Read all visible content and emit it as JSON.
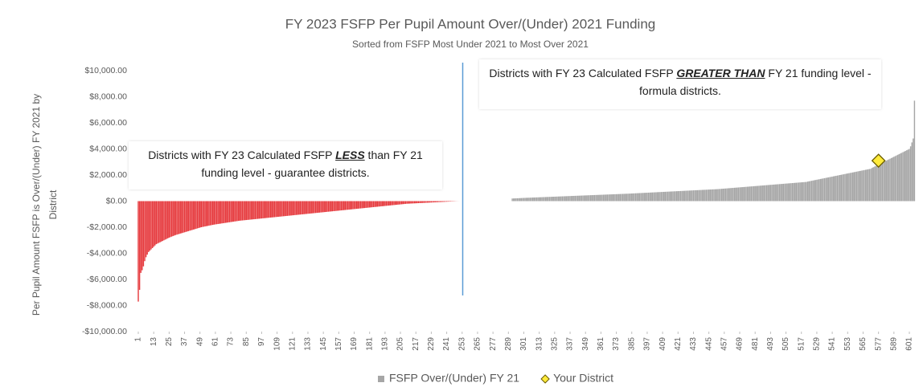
{
  "chart_data": {
    "type": "bar",
    "title": "FY 2023 FSFP Per Pupil Amount Over/(Under) 2021 Funding",
    "subtitle": "Sorted from FSFP Most Under 2021 to Most Over 2021",
    "y_label": [
      "Per Pupil Amount FSFP is Over/(Under) FY 2021 by",
      "District"
    ],
    "annotations": [
      [
        "Districts with FY 23 Calculated FSFP ",
        "LESS",
        " than FY 21 funding level - guarantee districts."
      ],
      [
        "Districts with FY 23 Calculated FSFP ",
        "GREATER THAN",
        " FY 21 funding level - formula districts."
      ]
    ],
    "negative_color": "#e63b3f",
    "xlim": [
      0.5,
      605.5
    ],
    "ylim": [
      -10000,
      10000
    ],
    "yticks": [
      {
        "value": -10000,
        "label": "-$10,000.00"
      },
      {
        "value": -8000,
        "label": "-$8,000.00"
      },
      {
        "value": -6000,
        "label": "-$6,000.00"
      },
      {
        "value": -4000,
        "label": "-$4,000.00"
      },
      {
        "value": -2000,
        "label": "-$2,000.00"
      },
      {
        "value": 0,
        "label": "$0.00"
      },
      {
        "value": 2000,
        "label": "$2,000.00"
      },
      {
        "value": 4000,
        "label": "$4,000.00"
      },
      {
        "value": 6000,
        "label": "$6,000.00"
      },
      {
        "value": 8000,
        "label": "$8,000.00"
      },
      {
        "value": 10000,
        "label": "$10,000.00"
      }
    ],
    "xticks": [
      1,
      13,
      25,
      37,
      49,
      61,
      73,
      85,
      97,
      109,
      121,
      133,
      145,
      157,
      169,
      181,
      193,
      205,
      217,
      229,
      241,
      253,
      265,
      277,
      289,
      301,
      313,
      325,
      337,
      349,
      361,
      373,
      385,
      397,
      409,
      421,
      433,
      445,
      457,
      469,
      481,
      493,
      505,
      517,
      529,
      541,
      553,
      565,
      577,
      589,
      601
    ],
    "x": [
      1,
      2,
      3,
      4,
      5,
      6,
      7,
      8,
      9,
      10,
      11,
      12,
      13,
      14,
      15,
      16,
      17,
      18,
      19,
      20,
      21,
      22,
      23,
      24,
      25,
      26,
      27,
      28,
      29,
      30,
      31,
      32,
      33,
      34,
      35,
      36,
      37,
      38,
      39,
      40,
      41,
      42,
      43,
      44,
      45,
      46,
      47,
      48,
      49,
      50,
      51,
      52,
      53,
      54,
      55,
      56,
      57,
      58,
      59,
      60,
      61,
      62,
      63,
      64,
      65,
      66,
      67,
      68,
      69,
      70,
      71,
      72,
      73,
      74,
      75,
      76,
      77,
      78,
      79,
      80,
      81,
      82,
      83,
      84,
      85,
      86,
      87,
      88,
      89,
      90,
      91,
      92,
      93,
      94,
      95,
      96,
      97,
      98,
      99,
      100,
      101,
      102,
      103,
      104,
      105,
      106,
      107,
      108,
      109,
      110,
      111,
      112,
      113,
      114,
      115,
      116,
      117,
      118,
      119,
      120,
      121,
      122,
      123,
      124,
      125,
      126,
      127,
      128,
      129,
      130,
      131,
      132,
      133,
      134,
      135,
      136,
      137,
      138,
      139,
      140,
      141,
      142,
      143,
      144,
      145,
      146,
      147,
      148,
      149,
      150,
      151,
      152,
      153,
      154,
      155,
      156,
      157,
      158,
      159,
      160,
      161,
      162,
      163,
      164,
      165,
      166,
      167,
      168,
      169,
      170,
      171,
      172,
      173,
      174,
      175,
      176,
      177,
      178,
      179,
      180,
      181,
      182,
      183,
      184,
      185,
      186,
      187,
      188,
      189,
      190,
      191,
      192,
      193,
      194,
      195,
      196,
      197,
      198,
      199,
      200,
      201,
      202,
      203,
      204,
      205,
      206,
      207,
      208,
      209,
      210,
      211,
      212,
      213,
      214,
      215,
      216,
      217,
      218,
      219,
      220,
      221,
      222,
      223,
      224,
      225,
      226,
      227,
      228,
      229,
      230,
      231,
      232,
      233,
      234,
      235,
      236,
      237,
      238,
      239,
      240,
      241,
      242,
      243,
      244,
      245,
      246,
      247,
      248,
      249,
      250,
      251,
      252,
      253,
      254,
      255,
      256,
      257,
      258,
      259,
      260,
      261,
      262,
      263,
      264,
      265,
      266,
      267,
      268,
      269,
      270,
      271,
      272,
      273,
      274,
      275,
      276,
      277,
      278,
      279,
      280,
      281,
      282,
      283,
      284,
      285,
      286,
      287,
      288,
      289,
      290,
      291,
      292,
      293,
      294,
      295,
      296,
      297,
      298,
      299,
      300,
      301,
      302,
      303,
      304,
      305,
      306,
      307,
      308,
      309,
      310,
      311,
      312,
      313,
      314,
      315,
      316,
      317,
      318,
      319,
      320,
      321,
      322,
      323,
      324,
      325,
      326,
      327,
      328,
      329,
      330,
      331,
      332,
      333,
      334,
      335,
      336,
      337,
      338,
      339,
      340,
      341,
      342,
      343,
      344,
      345,
      346,
      347,
      348,
      349,
      350,
      351,
      352,
      353,
      354,
      355,
      356,
      357,
      358,
      359,
      360,
      361,
      362,
      363,
      364,
      365,
      366,
      367,
      368,
      369,
      370,
      371,
      372,
      373,
      374,
      375,
      376,
      377,
      378,
      379,
      380,
      381,
      382,
      383,
      384,
      385,
      386,
      387,
      388,
      389,
      390,
      391,
      392,
      393,
      394,
      395,
      396,
      397,
      398,
      399,
      400,
      401,
      402,
      403,
      404,
      405,
      406,
      407,
      408,
      409,
      410,
      411,
      412,
      413,
      414,
      415,
      416,
      417,
      418,
      419,
      420,
      421,
      422,
      423,
      424,
      425,
      426,
      427,
      428,
      429,
      430,
      431,
      432,
      433,
      434,
      435,
      436,
      437,
      438,
      439,
      440,
      441,
      442,
      443,
      444,
      445,
      446,
      447,
      448,
      449,
      450,
      451,
      452,
      453,
      454,
      455,
      456,
      457,
      458,
      459,
      460,
      461,
      462,
      463,
      464,
      465,
      466,
      467,
      468,
      469,
      470,
      471,
      472,
      473,
      474,
      475,
      476,
      477,
      478,
      479,
      480,
      481,
      482,
      483,
      484,
      485,
      486,
      487,
      488,
      489,
      490,
      491,
      492,
      493,
      494,
      495,
      496,
      497,
      498,
      499,
      500,
      501,
      502,
      503,
      504,
      505,
      506,
      507,
      508,
      509,
      510,
      511,
      512,
      513,
      514,
      515,
      516,
      517,
      518,
      519,
      520,
      521,
      522,
      523,
      524,
      525,
      526,
      527,
      528,
      529,
      530,
      531,
      532,
      533,
      534,
      535,
      536,
      537,
      538,
      539,
      540,
      541,
      542,
      543,
      544,
      545,
      546,
      547,
      548,
      549,
      550,
      551,
      552,
      553,
      554,
      555,
      556,
      557,
      558,
      559,
      560,
      561,
      562,
      563,
      564,
      565,
      566,
      567,
      568,
      569,
      570,
      571,
      572,
      573,
      574,
      575,
      576,
      577,
      578,
      579,
      580,
      581,
      582,
      583,
      584,
      585,
      586,
      587,
      588,
      589,
      590,
      591,
      592,
      593,
      594,
      595,
      596,
      597,
      598,
      599,
      600,
      601,
      602,
      603,
      604,
      605
    ],
    "series": [
      {
        "name": "FSFP Over/(Under) FY 21",
        "color": "#a6a6a6",
        "values": [
          -7700,
          -6800,
          -5500,
          -5300,
          -5000,
          -4600,
          -4300,
          -4100,
          -3900,
          -3800,
          -3700,
          -3600,
          -3500,
          -3400,
          -3300,
          -3250,
          -3200,
          -3150,
          -3100,
          -3050,
          -3000,
          -2950,
          -2900,
          -2850,
          -2800,
          -2760,
          -2720,
          -2680,
          -2640,
          -2600,
          -2570,
          -2540,
          -2510,
          -2480,
          -2450,
          -2420,
          -2390,
          -2360,
          -2330,
          -2300,
          -2270,
          -2240,
          -2210,
          -2180,
          -2150,
          -2120,
          -2090,
          -2060,
          -2030,
          -2000,
          -1980,
          -1960,
          -1940,
          -1920,
          -1900,
          -1880,
          -1860,
          -1840,
          -1820,
          -1800,
          -1785,
          -1770,
          -1755,
          -1740,
          -1725,
          -1710,
          -1695,
          -1680,
          -1665,
          -1650,
          -1635,
          -1620,
          -1605,
          -1590,
          -1575,
          -1560,
          -1545,
          -1530,
          -1515,
          -1500,
          -1490,
          -1480,
          -1470,
          -1460,
          -1450,
          -1440,
          -1430,
          -1420,
          -1410,
          -1400,
          -1390,
          -1380,
          -1370,
          -1360,
          -1350,
          -1340,
          -1330,
          -1320,
          -1310,
          -1300,
          -1290,
          -1280,
          -1270,
          -1260,
          -1250,
          -1240,
          -1230,
          -1220,
          -1210,
          -1200,
          -1190,
          -1180,
          -1170,
          -1160,
          -1150,
          -1140,
          -1130,
          -1120,
          -1110,
          -1100,
          -1090,
          -1080,
          -1070,
          -1060,
          -1050,
          -1040,
          -1030,
          -1020,
          -1010,
          -1000,
          -990,
          -980,
          -970,
          -960,
          -950,
          -940,
          -930,
          -920,
          -910,
          -900,
          -890,
          -880,
          -870,
          -860,
          -850,
          -840,
          -830,
          -820,
          -810,
          -800,
          -790,
          -780,
          -770,
          -760,
          -750,
          -740,
          -730,
          -720,
          -710,
          -700,
          -690,
          -680,
          -670,
          -660,
          -650,
          -640,
          -630,
          -620,
          -610,
          -600,
          -590,
          -580,
          -570,
          -560,
          -550,
          -540,
          -530,
          -520,
          -510,
          -500,
          -490,
          -480,
          -470,
          -460,
          -450,
          -440,
          -430,
          -420,
          -410,
          -400,
          -390,
          -380,
          -370,
          -360,
          -350,
          -340,
          -330,
          -320,
          -310,
          -300,
          -290,
          -280,
          -270,
          -260,
          -250,
          -240,
          -230,
          -220,
          -210,
          -200,
          -195,
          -190,
          -185,
          -180,
          -175,
          -170,
          -165,
          -160,
          -155,
          -150,
          -145,
          -140,
          -135,
          -130,
          -125,
          -120,
          -115,
          -110,
          -105,
          -100,
          -95,
          -90,
          -85,
          -80,
          -75,
          -70,
          -65,
          -60,
          -55,
          -50,
          -45,
          -40,
          -35,
          -30,
          -25,
          -20,
          -15,
          -10,
          -5,
          -3,
          -1,
          0,
          0,
          0,
          0,
          0,
          0,
          0,
          0,
          0,
          0,
          0,
          0,
          0,
          0,
          0,
          0,
          0,
          0,
          0,
          0,
          0,
          0,
          0,
          0,
          0,
          0,
          0,
          0,
          0,
          0,
          0,
          0,
          0,
          0,
          0,
          0,
          0,
          0,
          0,
          0,
          200,
          205,
          210,
          215,
          220,
          225,
          230,
          235,
          240,
          245,
          250,
          254,
          258,
          262,
          266,
          270,
          274,
          278,
          282,
          286,
          290,
          294,
          298,
          302,
          306,
          310,
          314,
          318,
          322,
          326,
          330,
          334,
          338,
          342,
          346,
          350,
          354,
          358,
          362,
          366,
          370,
          374,
          378,
          382,
          386,
          390,
          394,
          398,
          402,
          406,
          410,
          414,
          418,
          422,
          426,
          430,
          434,
          438,
          442,
          446,
          450,
          454,
          458,
          462,
          466,
          470,
          474,
          478,
          482,
          486,
          490,
          494,
          498,
          502,
          506,
          510,
          514,
          518,
          522,
          526,
          530,
          534,
          538,
          542,
          546,
          550,
          554,
          558,
          562,
          566,
          570,
          575,
          580,
          585,
          590,
          595,
          600,
          605,
          610,
          615,
          620,
          625,
          630,
          635,
          640,
          645,
          650,
          655,
          660,
          665,
          670,
          675,
          680,
          685,
          690,
          695,
          700,
          705,
          710,
          715,
          720,
          725,
          730,
          735,
          740,
          745,
          750,
          755,
          760,
          765,
          770,
          775,
          780,
          785,
          790,
          795,
          800,
          805,
          810,
          815,
          820,
          825,
          830,
          835,
          840,
          845,
          850,
          855,
          860,
          865,
          870,
          875,
          880,
          885,
          890,
          895,
          900,
          905,
          910,
          915,
          920,
          928,
          936,
          944,
          952,
          960,
          968,
          976,
          984,
          992,
          1000,
          1008,
          1016,
          1024,
          1032,
          1040,
          1048,
          1056,
          1064,
          1072,
          1080,
          1088,
          1096,
          1104,
          1112,
          1120,
          1128,
          1136,
          1144,
          1152,
          1160,
          1168,
          1176,
          1184,
          1192,
          1200,
          1208,
          1216,
          1224,
          1232,
          1240,
          1248,
          1256,
          1264,
          1272,
          1280,
          1288,
          1296,
          1304,
          1312,
          1320,
          1328,
          1336,
          1344,
          1352,
          1360,
          1368,
          1376,
          1384,
          1392,
          1400,
          1408,
          1416,
          1424,
          1432,
          1440,
          1448,
          1456,
          1464,
          1472,
          1500,
          1520,
          1540,
          1560,
          1580,
          1600,
          1620,
          1640,
          1660,
          1680,
          1700,
          1720,
          1740,
          1760,
          1780,
          1800,
          1820,
          1840,
          1860,
          1880,
          1900,
          1920,
          1940,
          1960,
          1980,
          2000,
          2020,
          2040,
          2060,
          2080,
          2100,
          2120,
          2140,
          2160,
          2180,
          2200,
          2220,
          2240,
          2260,
          2280,
          2300,
          2320,
          2340,
          2360,
          2380,
          2400,
          2420,
          2440,
          2460,
          2480,
          2550,
          2600,
          2650,
          2700,
          2750,
          2800,
          2850,
          2900,
          2950,
          3000,
          3050,
          3100,
          3150,
          3200,
          3250,
          3300,
          3350,
          3400,
          3450,
          3500,
          3550,
          3600,
          3650,
          3700,
          3750,
          3800,
          3850,
          3900,
          3950,
          4000,
          4200,
          4500,
          4800,
          7700
        ]
      },
      {
        "name": "Your District",
        "type": "scatter",
        "marker": "diamond",
        "color": "#ffeb3b",
        "x": [
          577
        ],
        "values": [
          3100
        ]
      }
    ]
  }
}
